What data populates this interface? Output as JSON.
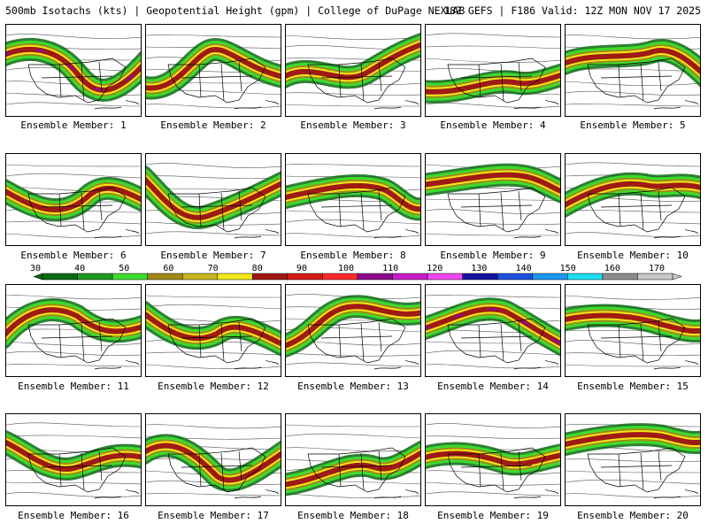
{
  "header": {
    "title": "500mb Isotachs (kts) | Geopotential Height (gpm) | College of DuPage NEXLAB",
    "run_info": "18Z GEFS | F186 Valid: 12Z MON NOV 17 2025"
  },
  "colorbar": {
    "ticks": [
      "30",
      "40",
      "50",
      "60",
      "70",
      "80",
      "90",
      "100",
      "110",
      "120",
      "130",
      "140",
      "150",
      "160",
      "170"
    ],
    "colors": [
      "#0a6a12",
      "#1c9a1c",
      "#3cdc2c",
      "#a08a16",
      "#c8b41e",
      "#f0e81a",
      "#a01a14",
      "#d41a14",
      "#ff2a2a",
      "#8c0c8c",
      "#c81ec8",
      "#f046f0",
      "#1414a0",
      "#1c50dc",
      "#1e96f0",
      "#1ee0f0",
      "#8c8c8c",
      "#c8c8c8"
    ]
  },
  "members": [
    {
      "label": "Ensemble Member: 1"
    },
    {
      "label": "Ensemble Member: 2"
    },
    {
      "label": "Ensemble Member: 3"
    },
    {
      "label": "Ensemble Member: 4"
    },
    {
      "label": "Ensemble Member: 5"
    },
    {
      "label": "Ensemble Member: 6"
    },
    {
      "label": "Ensemble Member: 7"
    },
    {
      "label": "Ensemble Member: 8"
    },
    {
      "label": "Ensemble Member: 9"
    },
    {
      "label": "Ensemble Member: 10"
    },
    {
      "label": "Ensemble Member: 11"
    },
    {
      "label": "Ensemble Member: 12"
    },
    {
      "label": "Ensemble Member: 13"
    },
    {
      "label": "Ensemble Member: 14"
    },
    {
      "label": "Ensemble Member: 15"
    },
    {
      "label": "Ensemble Member: 16"
    },
    {
      "label": "Ensemble Member: 17"
    },
    {
      "label": "Ensemble Member: 18"
    },
    {
      "label": "Ensemble Member: 19"
    },
    {
      "label": "Ensemble Member: 20"
    }
  ]
}
